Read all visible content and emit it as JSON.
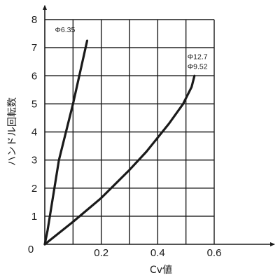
{
  "chart_data": {
    "type": "line",
    "xlabel": "Cv値",
    "ylabel": "ハンドル回転数",
    "xlim": [
      0,
      0.6
    ],
    "ylim": [
      0,
      8
    ],
    "x_ticks": [
      "0",
      "0.2",
      "0.4",
      "0.6"
    ],
    "y_ticks": [
      "1",
      "2",
      "3",
      "4",
      "5",
      "6",
      "7",
      "8"
    ],
    "grid": true,
    "series": [
      {
        "name": "Φ6.35",
        "x": [
          0,
          0.01,
          0.05,
          0.1,
          0.15
        ],
        "y": [
          0,
          0.5,
          3,
          5,
          7.25
        ]
      },
      {
        "name": "Φ12.7\nΦ9.52",
        "x": [
          0,
          0.1,
          0.2,
          0.3,
          0.36,
          0.44,
          0.49,
          0.52,
          0.53
        ],
        "y": [
          0,
          0.8,
          1.65,
          2.65,
          3.3,
          4.3,
          5.0,
          5.6,
          6.0
        ]
      }
    ]
  }
}
